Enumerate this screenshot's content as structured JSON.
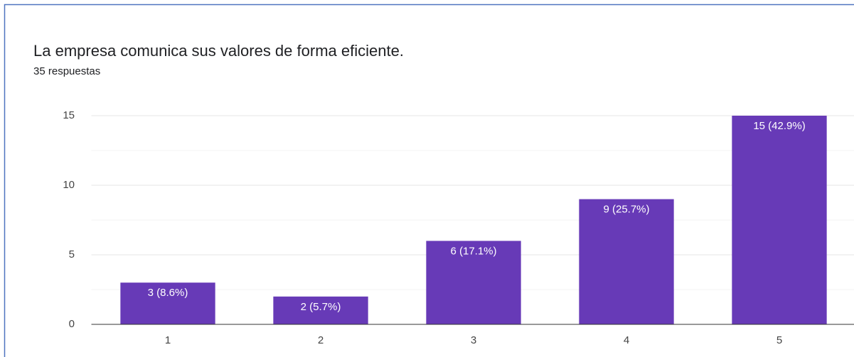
{
  "chart_data": {
    "type": "bar",
    "title": "La empresa comunica sus valores de forma eficiente.",
    "subtitle": "35 respuestas",
    "categories": [
      "1",
      "2",
      "3",
      "4",
      "5"
    ],
    "values": [
      3,
      2,
      6,
      9,
      15
    ],
    "value_labels": [
      "3 (8.6%)",
      "2 (5.7%)",
      "6 (17.1%)",
      "9 (25.7%)",
      "15 (42.9%)"
    ],
    "color": "#673ab7",
    "ylim": [
      0,
      15
    ],
    "yticks": [
      0,
      5,
      10,
      15
    ],
    "grid": true,
    "minor_grid": true
  }
}
